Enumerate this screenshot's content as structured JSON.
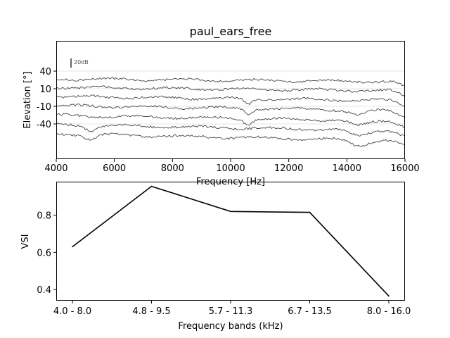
{
  "chart_data": [
    {
      "type": "line",
      "title": "paul_ears_free",
      "xlabel": "Frequency [Hz]",
      "ylabel": "Elevation [°]",
      "xlim": [
        4000,
        16000
      ],
      "xticks": [
        4000,
        6000,
        8000,
        10000,
        12000,
        14000,
        16000
      ],
      "xtick_labels": [
        "4000",
        "6000",
        "8000",
        "10000",
        "12000",
        "14000",
        "16000"
      ],
      "ytick_labels": [
        "40",
        "10",
        "-10",
        "-40"
      ],
      "scale_bar_label": "20dB",
      "scale_bar_db": 20,
      "grid": true,
      "trace_count": 7,
      "trace_color": "#444444",
      "grid_color": "#e6e6e6"
    },
    {
      "type": "line",
      "title": "",
      "xlabel": "Frequency bands (kHz)",
      "ylabel": "VSI",
      "categories": [
        "4.0 - 8.0",
        "4.8 - 9.5",
        "5.7 - 11.3",
        "6.7 - 13.5",
        "8.0 - 16.0"
      ],
      "values": [
        0.63,
        0.955,
        0.82,
        0.815,
        0.365
      ],
      "ylim": [
        0.34,
        0.98
      ],
      "yticks": [
        0.4,
        0.6,
        0.8
      ],
      "ytick_labels": [
        "0.4",
        "0.6",
        "0.8"
      ],
      "grid": false,
      "line_color": "#000000"
    }
  ]
}
